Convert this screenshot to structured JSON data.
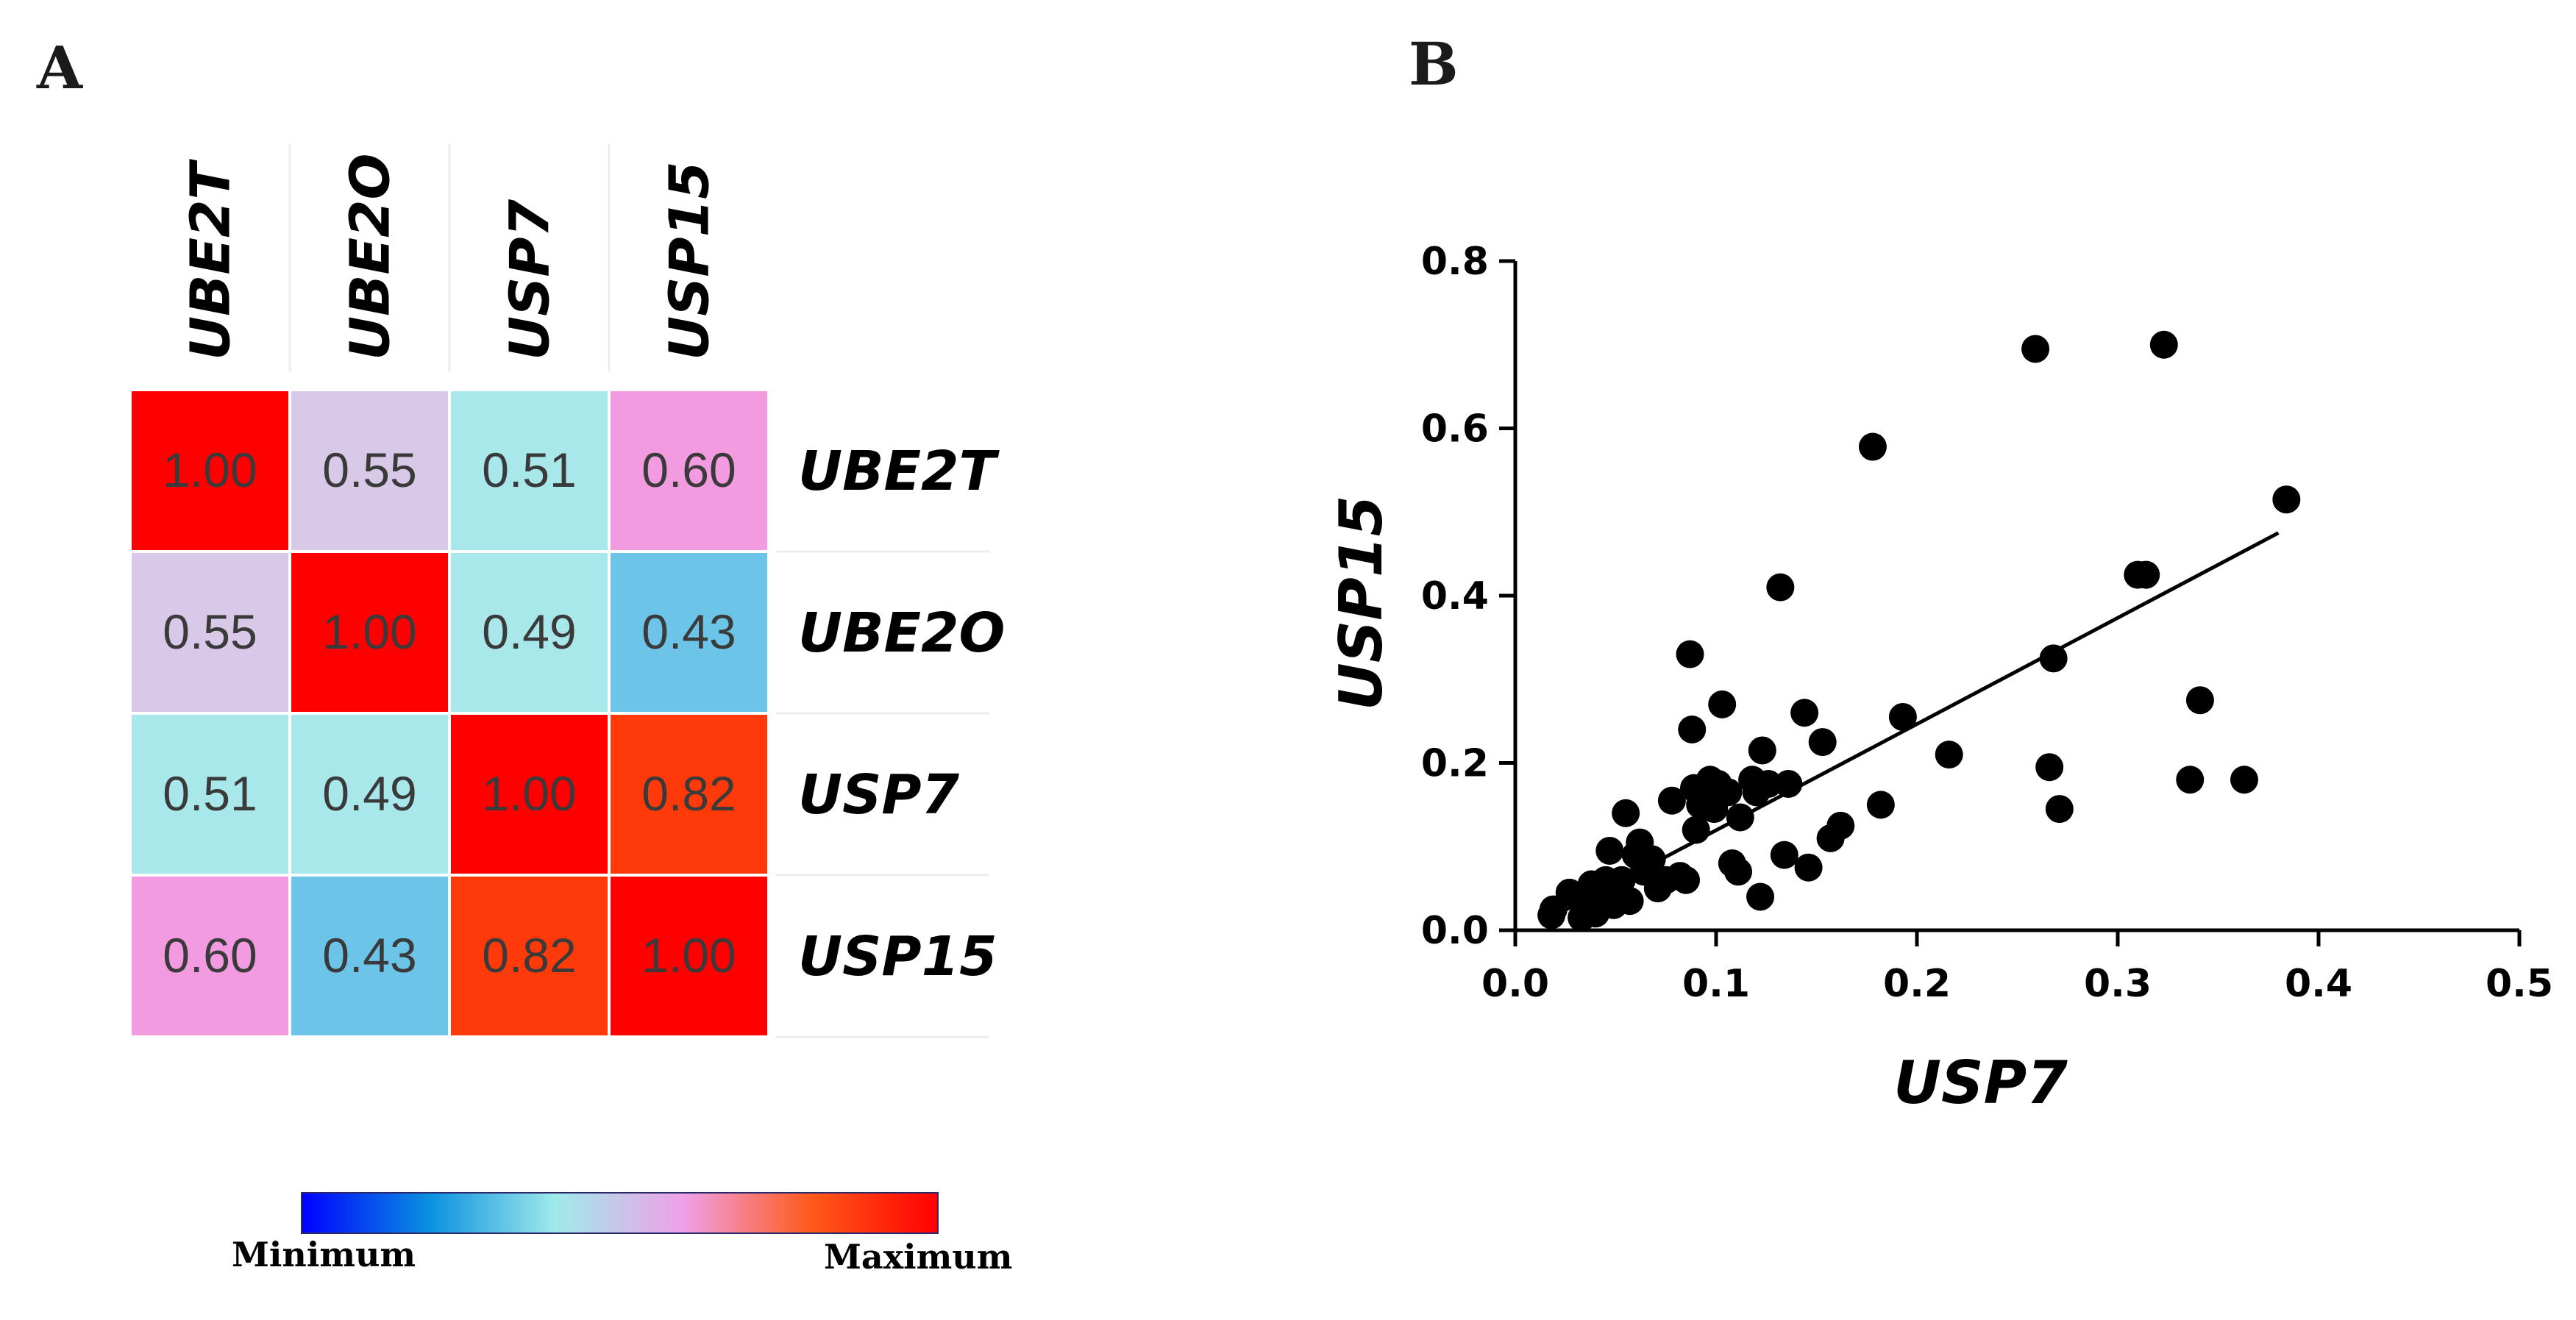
{
  "panels": {
    "a_label": "A",
    "b_label": "B"
  },
  "chart_data": [
    {
      "type": "heatmap",
      "genes": [
        "UBE2T",
        "UBE2O",
        "USP7",
        "USP15"
      ],
      "matrix": [
        [
          1.0,
          0.55,
          0.51,
          0.6
        ],
        [
          0.55,
          1.0,
          0.49,
          0.43
        ],
        [
          0.51,
          0.49,
          1.0,
          0.82
        ],
        [
          0.6,
          0.43,
          0.82,
          1.0
        ]
      ],
      "cell_labels": [
        [
          "1.00",
          "0.55",
          "0.51",
          "0.60"
        ],
        [
          "0.55",
          "1.00",
          "0.49",
          "0.43"
        ],
        [
          "0.51",
          "0.49",
          "1.00",
          "0.82"
        ],
        [
          "0.60",
          "0.43",
          "0.82",
          "1.00"
        ]
      ],
      "cell_colors": [
        [
          "#ff0000",
          "#d8c9e8",
          "#a8e8ea",
          "#f29be0"
        ],
        [
          "#d8c9e8",
          "#ff0000",
          "#a8e8ea",
          "#6cc4e8"
        ],
        [
          "#a8e8ea",
          "#a8e8ea",
          "#ff0000",
          "#ff3a0a"
        ],
        [
          "#f29be0",
          "#6cc4e8",
          "#ff3a0a",
          "#ff0000"
        ]
      ],
      "colorbar": {
        "min_label": "Minimum",
        "max_label": "Maximum",
        "colors": [
          "#0000ff",
          "#0a90e0",
          "#a0eaea",
          "#f0a0e8",
          "#ff5a1a",
          "#ff0000"
        ]
      }
    },
    {
      "type": "scatter",
      "xlabel": "USP7",
      "ylabel": "USP15",
      "xlim": [
        0.0,
        0.5
      ],
      "ylim": [
        0.0,
        0.8
      ],
      "xticks": [
        0.0,
        0.1,
        0.2,
        0.3,
        0.4,
        0.5
      ],
      "yticks": [
        0.0,
        0.2,
        0.4,
        0.6,
        0.8
      ],
      "xtick_labels": [
        "0.0",
        "0.1",
        "0.2",
        "0.3",
        "0.4",
        "0.5"
      ],
      "ytick_labels": [
        "0.0",
        "0.2",
        "0.4",
        "0.6",
        "0.8"
      ],
      "points": [
        [
          0.018,
          0.018
        ],
        [
          0.019,
          0.025
        ],
        [
          0.027,
          0.045
        ],
        [
          0.033,
          0.015
        ],
        [
          0.036,
          0.03
        ],
        [
          0.038,
          0.055
        ],
        [
          0.04,
          0.02
        ],
        [
          0.042,
          0.04
        ],
        [
          0.045,
          0.06
        ],
        [
          0.047,
          0.095
        ],
        [
          0.049,
          0.03
        ],
        [
          0.052,
          0.045
        ],
        [
          0.053,
          0.06
        ],
        [
          0.055,
          0.14
        ],
        [
          0.057,
          0.035
        ],
        [
          0.06,
          0.09
        ],
        [
          0.062,
          0.105
        ],
        [
          0.064,
          0.07
        ],
        [
          0.068,
          0.085
        ],
        [
          0.071,
          0.05
        ],
        [
          0.075,
          0.06
        ],
        [
          0.078,
          0.155
        ],
        [
          0.082,
          0.065
        ],
        [
          0.085,
          0.06
        ],
        [
          0.087,
          0.33
        ],
        [
          0.088,
          0.24
        ],
        [
          0.089,
          0.17
        ],
        [
          0.09,
          0.12
        ],
        [
          0.092,
          0.15
        ],
        [
          0.095,
          0.17
        ],
        [
          0.097,
          0.18
        ],
        [
          0.099,
          0.145
        ],
        [
          0.101,
          0.175
        ],
        [
          0.103,
          0.27
        ],
        [
          0.106,
          0.165
        ],
        [
          0.108,
          0.08
        ],
        [
          0.111,
          0.07
        ],
        [
          0.112,
          0.135
        ],
        [
          0.118,
          0.18
        ],
        [
          0.12,
          0.165
        ],
        [
          0.122,
          0.04
        ],
        [
          0.123,
          0.215
        ],
        [
          0.126,
          0.175
        ],
        [
          0.132,
          0.41
        ],
        [
          0.134,
          0.09
        ],
        [
          0.136,
          0.175
        ],
        [
          0.144,
          0.26
        ],
        [
          0.146,
          0.075
        ],
        [
          0.153,
          0.225
        ],
        [
          0.157,
          0.11
        ],
        [
          0.162,
          0.125
        ],
        [
          0.178,
          0.578
        ],
        [
          0.182,
          0.15
        ],
        [
          0.193,
          0.255
        ],
        [
          0.216,
          0.21
        ],
        [
          0.259,
          0.695
        ],
        [
          0.266,
          0.195
        ],
        [
          0.268,
          0.325
        ],
        [
          0.271,
          0.145
        ],
        [
          0.31,
          0.425
        ],
        [
          0.314,
          0.425
        ],
        [
          0.323,
          0.7
        ],
        [
          0.336,
          0.18
        ],
        [
          0.341,
          0.275
        ],
        [
          0.363,
          0.18
        ],
        [
          0.384,
          0.515
        ]
      ],
      "regression": {
        "x": [
          0.02,
          0.38
        ],
        "y": [
          0.018,
          0.475
        ]
      }
    }
  ]
}
